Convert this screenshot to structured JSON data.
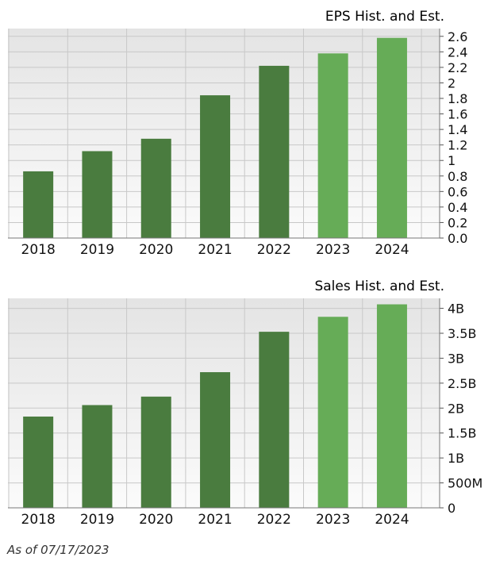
{
  "colors": {
    "historical": "#4a7c3f",
    "estimate": "#66ac57",
    "plot_background_top": "#e4e4e4",
    "plot_background_bottom": "#fbfbfb",
    "grid": "#c8c8c8"
  },
  "chart_data": [
    {
      "type": "bar",
      "title": "EPS Hist. and Est.",
      "categories": [
        "2018",
        "2019",
        "2020",
        "2021",
        "2022",
        "2023",
        "2024"
      ],
      "values": [
        0.86,
        1.12,
        1.28,
        1.84,
        2.22,
        2.38,
        2.58
      ],
      "estimate_flags": [
        false,
        false,
        false,
        false,
        false,
        true,
        true
      ],
      "ylim": [
        0,
        2.7
      ],
      "yticks": [
        0,
        0.2,
        0.4,
        0.6,
        0.8,
        1,
        1.2,
        1.4,
        1.6,
        1.8,
        2,
        2.2,
        2.4,
        2.6
      ],
      "ytick_labels": [
        "0.0",
        "0.2",
        "0.4",
        "0.6",
        "0.8",
        "1",
        "1.2",
        "1.4",
        "1.6",
        "1.8",
        "2",
        "2.2",
        "2.4",
        "2.6"
      ],
      "ylabel_side": "right",
      "grid": true
    },
    {
      "type": "bar",
      "title": "Sales Hist. and Est.",
      "categories": [
        "2018",
        "2019",
        "2020",
        "2021",
        "2022",
        "2023",
        "2024"
      ],
      "values": [
        1.83,
        2.06,
        2.23,
        2.72,
        3.53,
        3.83,
        4.08
      ],
      "value_unit": "billions",
      "estimate_flags": [
        false,
        false,
        false,
        false,
        false,
        true,
        true
      ],
      "ylim": [
        0,
        4.2
      ],
      "yticks": [
        0,
        0.5,
        1,
        1.5,
        2,
        2.5,
        3,
        3.5,
        4
      ],
      "ytick_labels": [
        "0",
        "500M",
        "1B",
        "1.5B",
        "2B",
        "2.5B",
        "3B",
        "3.5B",
        "4B"
      ],
      "ylabel_side": "right",
      "grid": true
    }
  ],
  "footnote": "As of 07/17/2023"
}
